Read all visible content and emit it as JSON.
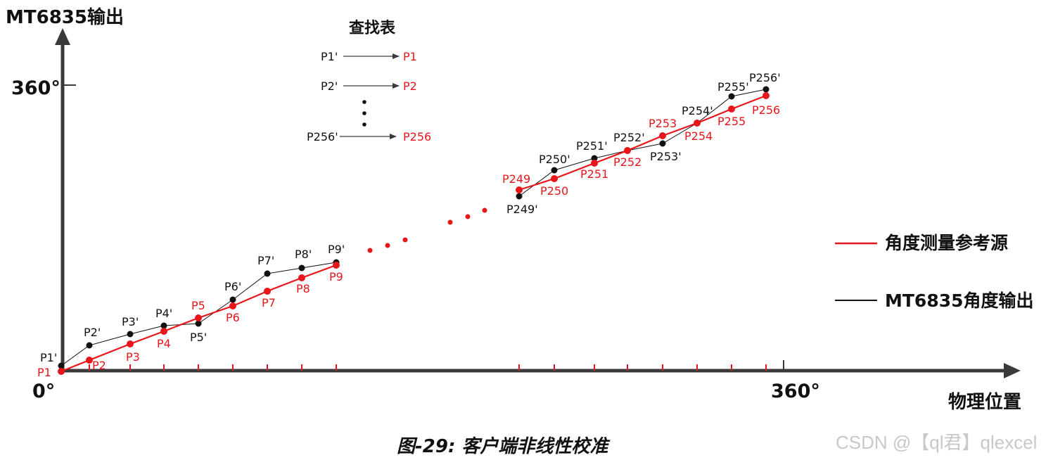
{
  "colors": {
    "reference": "#e8151a",
    "output": "#111111",
    "axis": "#3a3a3a",
    "watermark": "#c8c8c8"
  },
  "axes": {
    "y_label": "MT6835输出",
    "y_tick": "360°",
    "origin": "0°",
    "x_tick": "360°",
    "x_label": "物理位置"
  },
  "lookup": {
    "title": "查找表",
    "rows": [
      {
        "from": "P1'",
        "to": "P1"
      },
      {
        "from": "P2'",
        "to": "P2"
      },
      {
        "from": "P256'",
        "to": "P256"
      }
    ]
  },
  "legend": [
    {
      "label": "角度测量参考源",
      "color": "#e8151a"
    },
    {
      "label": "MT6835角度输出",
      "color": "#111111"
    }
  ],
  "caption": "图-29: 客户端非线性校准",
  "watermark": "CSDN @【ql君】qlexcel",
  "points_low": [
    {
      "ref": "P1",
      "out": "P1'"
    },
    {
      "ref": "P2",
      "out": "P2'"
    },
    {
      "ref": "P3",
      "out": "P3'"
    },
    {
      "ref": "P4",
      "out": "P4'"
    },
    {
      "ref": "P5",
      "out": "P5'"
    },
    {
      "ref": "P6",
      "out": "P6'"
    },
    {
      "ref": "P7",
      "out": "P7'"
    },
    {
      "ref": "P8",
      "out": "P8'"
    },
    {
      "ref": "P9",
      "out": "P9'"
    }
  ],
  "points_high": [
    {
      "ref": "P249",
      "out": "P249'"
    },
    {
      "ref": "P250",
      "out": "P250'"
    },
    {
      "ref": "P251",
      "out": "P251'"
    },
    {
      "ref": "P252",
      "out": "P252'"
    },
    {
      "ref": "P253",
      "out": "P253'"
    },
    {
      "ref": "P254",
      "out": "P254'"
    },
    {
      "ref": "P255",
      "out": "P255'"
    },
    {
      "ref": "P256",
      "out": "P256'"
    }
  ]
}
